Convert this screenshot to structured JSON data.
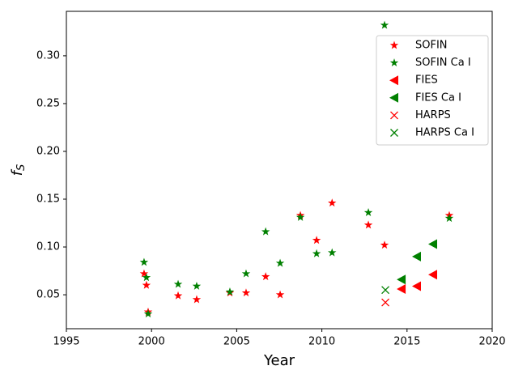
{
  "chart_data": {
    "type": "scatter",
    "xlabel": "Year",
    "ylabel": "f",
    "ylabel_subscript": "S",
    "xlim": [
      1995,
      2020
    ],
    "ylim": [
      0.0145,
      0.3465
    ],
    "xticks": [
      1995,
      2000,
      2005,
      2010,
      2015,
      2020
    ],
    "yticks": [
      {
        "value": 0.05,
        "label": "0.05"
      },
      {
        "value": 0.1,
        "label": "0.10"
      },
      {
        "value": 0.15,
        "label": "0.15"
      },
      {
        "value": 0.2,
        "label": "0.20"
      },
      {
        "value": 0.25,
        "label": "0.25"
      },
      {
        "value": 0.3,
        "label": "0.30"
      }
    ],
    "legend": "upper right",
    "series": [
      {
        "name": "SOFIN",
        "color": "#ff0000",
        "marker": "star",
        "x": [
          1999.56,
          1999.7,
          1999.8,
          2001.56,
          2002.65,
          2004.6,
          2005.55,
          2006.7,
          2007.55,
          2008.74,
          2009.69,
          2010.6,
          2012.73,
          2013.68,
          2017.48
        ],
        "values": [
          0.072,
          0.06,
          0.032,
          0.049,
          0.045,
          0.052,
          0.052,
          0.069,
          0.05,
          0.133,
          0.107,
          0.146,
          0.123,
          0.102,
          0.133
        ]
      },
      {
        "name": "SOFIN Ca I",
        "color": "#008000",
        "marker": "star",
        "x": [
          1999.56,
          1999.7,
          1999.8,
          2001.56,
          2002.65,
          2004.6,
          2005.55,
          2006.7,
          2007.55,
          2008.74,
          2009.69,
          2010.6,
          2012.73,
          2013.68,
          2017.48
        ],
        "values": [
          0.084,
          0.068,
          0.03,
          0.061,
          0.059,
          0.053,
          0.072,
          0.116,
          0.083,
          0.131,
          0.093,
          0.094,
          0.136,
          0.332,
          0.13
        ]
      },
      {
        "name": "FIES",
        "color": "#ff0000",
        "marker": "triangle-left",
        "x": [
          2014.68,
          2015.58,
          2016.53
        ],
        "values": [
          0.056,
          0.059,
          0.071
        ]
      },
      {
        "name": "FIES Ca I",
        "color": "#008000",
        "marker": "triangle-left",
        "x": [
          2014.68,
          2015.58,
          2016.53
        ],
        "values": [
          0.066,
          0.09,
          0.103
        ]
      },
      {
        "name": "HARPS",
        "color": "#ff0000",
        "marker": "x",
        "x": [
          2013.73
        ],
        "values": [
          0.042
        ]
      },
      {
        "name": "HARPS Ca I",
        "color": "#008000",
        "marker": "x",
        "x": [
          2013.73
        ],
        "values": [
          0.055
        ]
      }
    ]
  }
}
